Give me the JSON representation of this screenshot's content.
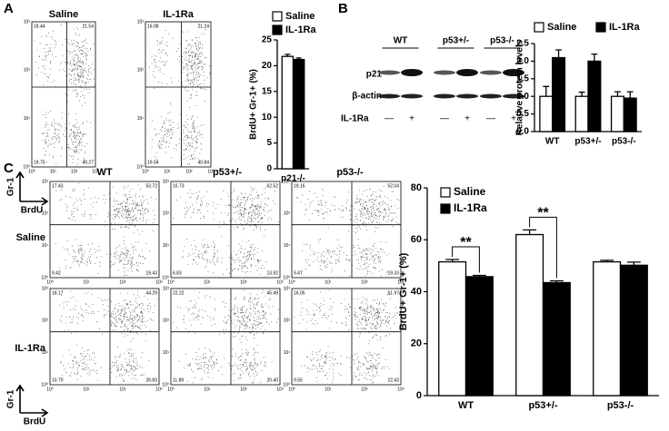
{
  "panels": [
    "A",
    "B",
    "C"
  ],
  "flow_axis": {
    "y": "Gr-1",
    "x": "BrdU",
    "ticks": [
      "10⁰",
      "10¹",
      "10²",
      "10³"
    ]
  },
  "flow_a": {
    "plots": [
      {
        "title": "Saline",
        "quadrants": [
          "18.44",
          "21.54",
          "19.75",
          "40.27"
        ]
      },
      {
        "title": "IL-1Ra",
        "quadrants": [
          "16.08",
          "21.24",
          "19.04",
          "40.84"
        ]
      }
    ]
  },
  "flow_c": {
    "columns": [
      "WT",
      "p53+/-",
      "p53-/-"
    ],
    "rows": [
      "Saline",
      "IL-1Ra"
    ],
    "quadrants": [
      [
        [
          "17.43",
          "53.72",
          "9.42",
          "19.43"
        ],
        [
          "16.73",
          "62.52",
          "6.83",
          "13.92"
        ],
        [
          "19.16",
          "52.04",
          "9.47",
          "19.33"
        ]
      ],
      [
        [
          "18.17",
          "44.29",
          "10.70",
          "26.83"
        ],
        [
          "22.22",
          "45.49",
          "11.89",
          "20.40"
        ],
        [
          "16.05",
          "51.97",
          "9.55",
          "22.43"
        ]
      ]
    ]
  },
  "blot": {
    "groups": [
      "WT",
      "p53+/-",
      "p53-/-"
    ],
    "rows": [
      "p21",
      "β-actin"
    ],
    "treatment": "IL-1Ra",
    "marks": [
      "—",
      "+",
      "—",
      "+",
      "—",
      "+"
    ]
  },
  "chart_data": [
    {
      "type": "bar",
      "y_label": "BrdU+ Gr-1+ (%)",
      "categories": [
        "p21-/-"
      ],
      "series": [
        {
          "name": "Saline",
          "color": "#ffffff",
          "values": [
            21.8
          ],
          "errors": [
            0.4
          ]
        },
        {
          "name": "IL-1Ra",
          "color": "#000000",
          "values": [
            21.2
          ],
          "errors": [
            0.3
          ]
        }
      ],
      "ylim": [
        0,
        25
      ],
      "yticks": [
        0,
        5,
        10,
        15,
        20,
        25
      ],
      "grid": false
    },
    {
      "type": "bar",
      "y_label": "Relative protein levels",
      "categories": [
        "WT",
        "p53+/-",
        "p53-/-"
      ],
      "series": [
        {
          "name": "Saline",
          "color": "#ffffff",
          "values": [
            1.0,
            1.0,
            1.0
          ],
          "errors": [
            0.28,
            0.12,
            0.13
          ]
        },
        {
          "name": "IL-1Ra",
          "color": "#000000",
          "values": [
            2.1,
            2.0,
            0.95
          ],
          "errors": [
            0.22,
            0.2,
            0.18
          ]
        }
      ],
      "ylim": [
        0,
        2.5
      ],
      "yticks": [
        {
          "value": 0,
          "label": "0.0"
        },
        0.5,
        {
          "value": 1,
          "label": "1.0"
        },
        1.5,
        {
          "value": 2,
          "label": "2.0"
        },
        2.5
      ],
      "grid": false
    },
    {
      "type": "bar",
      "y_label": "BrdU+ Gr-1+ (%)",
      "categories": [
        "WT",
        "p53+/-",
        "p53-/-"
      ],
      "series": [
        {
          "name": "Saline",
          "color": "#ffffff",
          "values": [
            51.5,
            62,
            51.5
          ],
          "errors": [
            0.9,
            1.8,
            0.6
          ]
        },
        {
          "name": "IL-1Ra",
          "color": "#000000",
          "values": [
            45.8,
            43.5,
            50.2
          ],
          "errors": [
            0.5,
            0.7,
            1.2
          ]
        }
      ],
      "ylim": [
        0,
        80
      ],
      "yticks": [
        0,
        20,
        40,
        60,
        80
      ],
      "annotations": [
        "**",
        "**"
      ],
      "grid": false
    }
  ]
}
